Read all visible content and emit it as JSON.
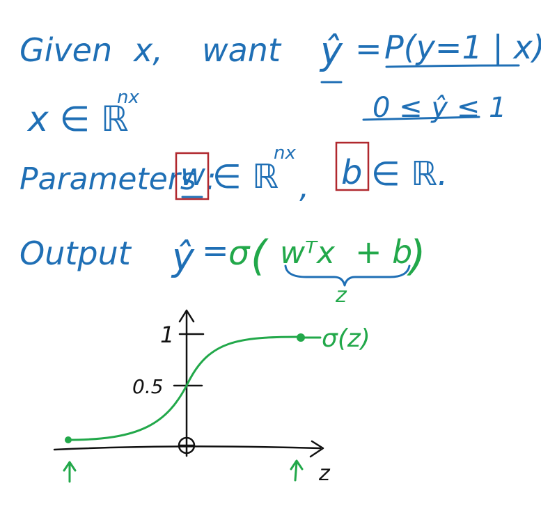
{
  "line1": {
    "given": "Given",
    "x": "x,",
    "want": "want",
    "yhat": "ŷ",
    "equals": "=",
    "prob": "P(y=1 | x)"
  },
  "line2": {
    "domain": "x ∈ ℝ",
    "domain_sup": "nx",
    "range": "0 ≤ ŷ ≤ 1"
  },
  "line3": {
    "params_label": "Parameters :",
    "w": "w",
    "w_domain": "∈ ℝ",
    "w_sup": "nx",
    "comma": ",",
    "b": "b",
    "b_domain": "∈ ℝ."
  },
  "line4": {
    "output_label": "Output",
    "yhat": "ŷ",
    "equals": "=",
    "sigma": "σ",
    "open_paren": "(",
    "wtx": "wᵀx",
    "plus_b": "+ b",
    "close_paren": ")",
    "z_label": "z"
  },
  "plot": {
    "tick_one": "1",
    "tick_half": "0.5",
    "curve_label": "σ(z)",
    "x_axis_label": "z"
  },
  "colors": {
    "blue": "#1f6fb5",
    "green": "#22a84a",
    "red": "#b0282e",
    "black": "#111111"
  }
}
